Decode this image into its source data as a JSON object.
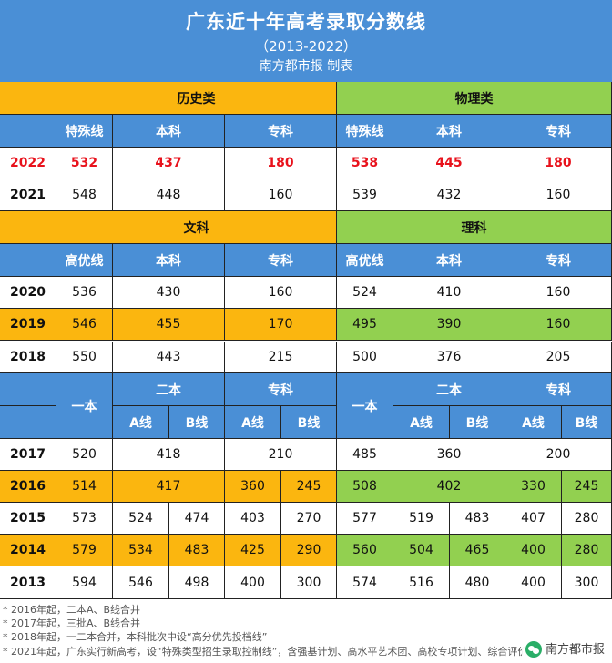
{
  "header": {
    "title": "广东近十年高考录取分数线",
    "years_range": "（2013-2022）",
    "source": "南方都市报 制表"
  },
  "section1": {
    "history_label": "历史类",
    "physics_label": "物理类",
    "subheaders": [
      "特殊线",
      "本科",
      "专科",
      "特殊线",
      "本科",
      "专科"
    ],
    "rows": [
      {
        "year": "2022",
        "values": [
          "532",
          "437",
          "180",
          "538",
          "445",
          "180"
        ]
      },
      {
        "year": "2021",
        "values": [
          "548",
          "448",
          "160",
          "539",
          "432",
          "160"
        ]
      }
    ]
  },
  "section2": {
    "arts_label": "文科",
    "science_label": "理科",
    "subheaders": [
      "高优线",
      "本科",
      "专科",
      "高优线",
      "本科",
      "专科"
    ],
    "rows": [
      {
        "year": "2020",
        "values": [
          "536",
          "430",
          "160",
          "524",
          "410",
          "160"
        ]
      },
      {
        "year": "2019",
        "values": [
          "546",
          "455",
          "170",
          "495",
          "390",
          "160"
        ]
      },
      {
        "year": "2018",
        "values": [
          "550",
          "443",
          "215",
          "500",
          "376",
          "205"
        ]
      }
    ]
  },
  "section3": {
    "yiben": "一本",
    "erben": "二本",
    "zhuanke": "专科",
    "a_line": "A线",
    "b_line": "B线",
    "rows": [
      {
        "year": "2017",
        "values": [
          "520",
          "418",
          "210",
          "485",
          "360",
          "200"
        ]
      },
      {
        "year": "2016",
        "values": [
          "514",
          "417",
          "360",
          "245",
          "508",
          "402",
          "330",
          "245"
        ]
      },
      {
        "year": "2015",
        "values": [
          "573",
          "524",
          "474",
          "403",
          "270",
          "577",
          "519",
          "483",
          "407",
          "280"
        ]
      },
      {
        "year": "2014",
        "values": [
          "579",
          "534",
          "483",
          "425",
          "290",
          "560",
          "504",
          "465",
          "400",
          "280"
        ]
      },
      {
        "year": "2013",
        "values": [
          "594",
          "546",
          "498",
          "400",
          "300",
          "574",
          "516",
          "480",
          "400",
          "300"
        ]
      }
    ]
  },
  "notes": [
    "* 2016年起，二本A、B线合并",
    "* 2017年起，三批A、B线合并",
    "* 2018年起，一二本合并，本科批次中设“高分优先投档线”",
    "* 2021年起，广东实行新高考，设“特殊类型招生录取控制线”，含强基计划、高水平艺术团、高校专项计划、综合评价"
  ],
  "watermark": {
    "text": "南方都市报"
  },
  "colors": {
    "blue": "#4a8fd6",
    "orange": "#fbb60f",
    "green": "#92d050",
    "red": "#e8121c"
  }
}
